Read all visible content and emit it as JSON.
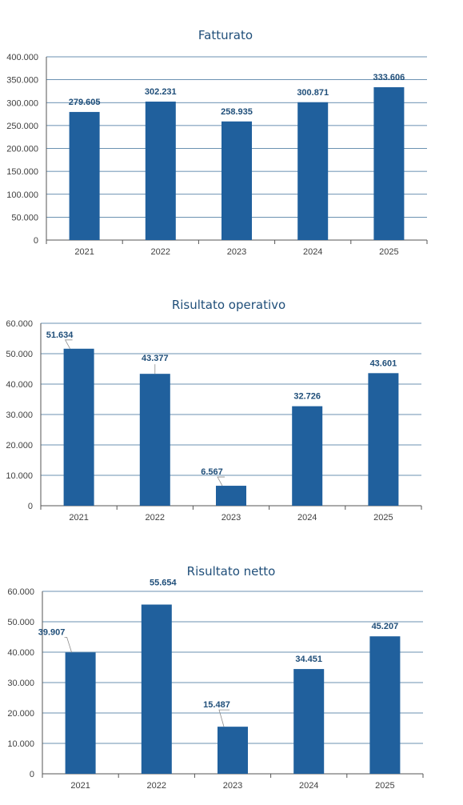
{
  "chart_data": [
    {
      "type": "bar",
      "title": "Fatturato",
      "categories": [
        "2021",
        "2022",
        "2023",
        "2024",
        "2025"
      ],
      "values": [
        279605,
        302231,
        258935,
        300871,
        333606
      ],
      "value_labels": [
        "279.605",
        "302.231",
        "258.935",
        "300.871",
        "333.606"
      ],
      "ylim": [
        0,
        400000
      ],
      "yticks": [
        "0",
        "50.000",
        "100.000",
        "150.000",
        "200.000",
        "250.000",
        "300.000",
        "350.000",
        "400.000"
      ],
      "grid": true,
      "bar_color": "#20609D"
    },
    {
      "type": "bar",
      "title": "Risultato operativo",
      "categories": [
        "2021",
        "2022",
        "2023",
        "2024",
        "2025"
      ],
      "values": [
        51634,
        43377,
        6567,
        32726,
        43601
      ],
      "value_labels": [
        "51.634",
        "43.377",
        "6.567",
        "32.726",
        "43.601"
      ],
      "ylim": [
        0,
        60000
      ],
      "yticks": [
        "0",
        "10.000",
        "20.000",
        "30.000",
        "40.000",
        "50.000",
        "60.000"
      ],
      "grid": true,
      "bar_color": "#20609D"
    },
    {
      "type": "bar",
      "title": "Risultato netto",
      "categories": [
        "2021",
        "2022",
        "2023",
        "2024",
        "2025"
      ],
      "values": [
        39907,
        55654,
        15487,
        34451,
        45207
      ],
      "value_labels": [
        "39.907",
        "55.654",
        "15.487",
        "34.451",
        "45.207"
      ],
      "ylim": [
        0,
        60000
      ],
      "yticks": [
        "0",
        "10.000",
        "20.000",
        "30.000",
        "40.000",
        "50.000",
        "60.000"
      ],
      "grid": true,
      "bar_color": "#20609D"
    }
  ]
}
